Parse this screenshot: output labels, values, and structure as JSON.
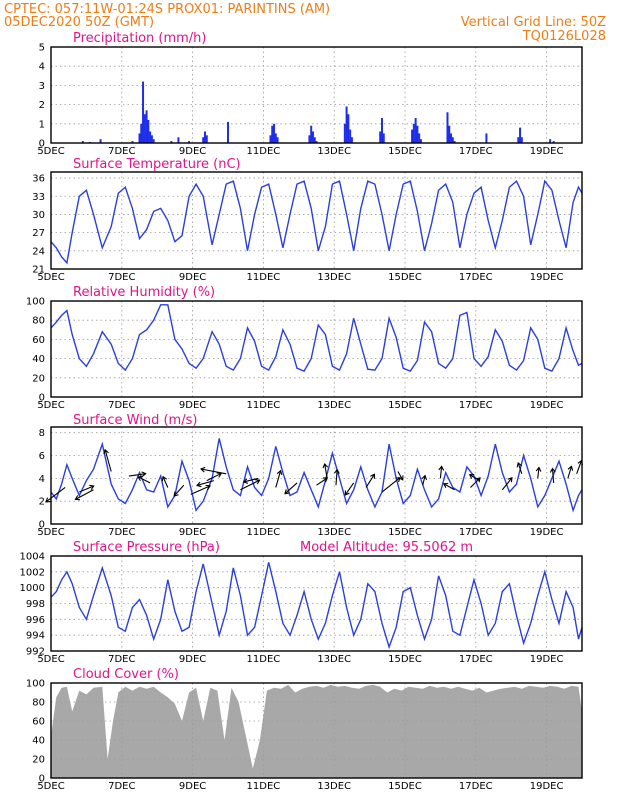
{
  "header": {
    "line1": "CPTEC:   057:11W-01:24S   PROX01: PARINTINS (AM)",
    "line2_left": "05DEC2020 50Z (GMT)",
    "line2_right": "Vertical Grid Line: 50Z",
    "line3_right": "TQ0126L028"
  },
  "x_axis": {
    "labels": [
      "5DEC",
      "7DEC",
      "9DEC",
      "11DEC",
      "13DEC",
      "15DEC",
      "17DEC",
      "19DEC"
    ],
    "start_day": 5,
    "end_day": 20
  },
  "colors": {
    "header": "#f07c14",
    "panel_title": "#e0148c",
    "series": "#2a3fe0",
    "bars": "#1f2ee8",
    "cloud": "#a8a8a8"
  },
  "chart_data": [
    {
      "type": "bar",
      "title": "Precipitation (mm/h)",
      "ylim": [
        0,
        5
      ],
      "yticks": [
        0,
        1,
        2,
        3,
        4,
        5
      ],
      "x": [
        5.9,
        6.1,
        6.4,
        7.3,
        7.5,
        7.55,
        7.6,
        7.65,
        7.7,
        7.75,
        7.8,
        7.85,
        7.9,
        8.4,
        8.6,
        8.9,
        9.3,
        9.35,
        9.4,
        10.0,
        11.2,
        11.25,
        11.3,
        11.35,
        11.4,
        12.3,
        12.35,
        12.4,
        12.45,
        12.5,
        13.3,
        13.35,
        13.4,
        13.45,
        13.5,
        14.3,
        14.35,
        14.4,
        15.2,
        15.25,
        15.3,
        15.35,
        15.4,
        15.45,
        16.2,
        16.25,
        16.3,
        16.35,
        16.4,
        17.3,
        18.2,
        18.25,
        18.3,
        19.1,
        19.2
      ],
      "values": [
        0.1,
        0.05,
        0.2,
        0.1,
        0.5,
        1.0,
        3.2,
        1.5,
        1.7,
        1.2,
        0.6,
        0.4,
        0.2,
        0.1,
        0.3,
        0.1,
        0.3,
        0.6,
        0.4,
        1.1,
        0.4,
        0.9,
        1.0,
        0.5,
        0.3,
        0.4,
        0.9,
        0.6,
        0.3,
        0.1,
        1.0,
        1.9,
        1.5,
        0.7,
        0.3,
        0.6,
        1.3,
        0.5,
        0.7,
        1.0,
        1.3,
        0.9,
        0.5,
        0.2,
        1.6,
        0.9,
        0.5,
        0.3,
        0.1,
        0.5,
        0.3,
        0.8,
        0.3,
        0.2,
        0.1
      ]
    },
    {
      "type": "line",
      "title": "Surface Temperature (nC)",
      "ylim": [
        21,
        37
      ],
      "yticks": [
        21,
        24,
        27,
        30,
        33,
        36
      ],
      "x": [
        5.0,
        5.15,
        5.3,
        5.45,
        5.6,
        5.8,
        6.0,
        6.2,
        6.45,
        6.7,
        6.9,
        7.1,
        7.3,
        7.5,
        7.7,
        7.9,
        8.1,
        8.3,
        8.5,
        8.7,
        8.9,
        9.1,
        9.3,
        9.55,
        9.75,
        9.95,
        10.15,
        10.35,
        10.55,
        10.75,
        10.95,
        11.15,
        11.35,
        11.55,
        11.75,
        11.95,
        12.15,
        12.35,
        12.55,
        12.75,
        12.95,
        13.15,
        13.35,
        13.55,
        13.75,
        13.95,
        14.15,
        14.35,
        14.55,
        14.75,
        14.95,
        15.15,
        15.35,
        15.55,
        15.75,
        15.95,
        16.15,
        16.35,
        16.55,
        16.75,
        16.95,
        17.15,
        17.35,
        17.55,
        17.75,
        17.95,
        18.15,
        18.35,
        18.55,
        18.75,
        18.95,
        19.15,
        19.35,
        19.55,
        19.75,
        19.9,
        20.0
      ],
      "values": [
        25.5,
        24.5,
        23.0,
        22.0,
        27.0,
        33.0,
        34.0,
        30.0,
        24.5,
        28.0,
        33.5,
        34.5,
        31.0,
        26.0,
        27.5,
        30.5,
        31.0,
        29.0,
        25.5,
        26.5,
        33.0,
        35.0,
        33.0,
        25.0,
        30.0,
        35.0,
        35.5,
        31.0,
        24.0,
        30.0,
        34.5,
        35.0,
        30.0,
        24.5,
        30.0,
        35.0,
        35.5,
        31.0,
        24.0,
        28.0,
        35.0,
        35.5,
        30.0,
        24.0,
        31.0,
        35.5,
        35.0,
        30.0,
        24.0,
        30.0,
        35.0,
        35.5,
        30.5,
        24.0,
        28.5,
        34.0,
        35.0,
        32.0,
        24.5,
        30.0,
        33.5,
        34.5,
        29.0,
        24.5,
        29.0,
        34.5,
        35.5,
        33.0,
        25.0,
        30.0,
        35.5,
        34.0,
        29.0,
        24.5,
        32.0,
        34.5,
        33.5
      ]
    },
    {
      "type": "line",
      "title": "Relative Humidity (%)",
      "ylim": [
        0,
        100
      ],
      "yticks": [
        0,
        20,
        40,
        60,
        80,
        100
      ],
      "x": [
        5.0,
        5.15,
        5.3,
        5.45,
        5.6,
        5.8,
        6.0,
        6.2,
        6.45,
        6.7,
        6.9,
        7.1,
        7.3,
        7.5,
        7.7,
        7.9,
        8.1,
        8.3,
        8.5,
        8.7,
        8.9,
        9.1,
        9.3,
        9.55,
        9.75,
        9.95,
        10.15,
        10.35,
        10.55,
        10.75,
        10.95,
        11.15,
        11.35,
        11.55,
        11.75,
        11.95,
        12.15,
        12.35,
        12.55,
        12.75,
        12.95,
        13.15,
        13.35,
        13.55,
        13.75,
        13.95,
        14.15,
        14.35,
        14.55,
        14.75,
        14.95,
        15.15,
        15.35,
        15.55,
        15.75,
        15.95,
        16.15,
        16.35,
        16.55,
        16.75,
        16.95,
        17.15,
        17.35,
        17.55,
        17.75,
        17.95,
        18.15,
        18.35,
        18.55,
        18.75,
        18.95,
        19.15,
        19.35,
        19.55,
        19.75,
        19.9,
        20.0
      ],
      "values": [
        72,
        78,
        85,
        90,
        65,
        40,
        32,
        45,
        68,
        55,
        35,
        28,
        40,
        65,
        70,
        80,
        96,
        96,
        60,
        50,
        35,
        30,
        40,
        68,
        55,
        32,
        28,
        40,
        72,
        58,
        32,
        28,
        42,
        70,
        55,
        30,
        27,
        40,
        75,
        65,
        32,
        28,
        45,
        82,
        55,
        29,
        28,
        40,
        82,
        62,
        30,
        27,
        38,
        78,
        68,
        35,
        30,
        40,
        85,
        88,
        40,
        32,
        42,
        70,
        58,
        33,
        28,
        38,
        72,
        60,
        30,
        27,
        40,
        72,
        48,
        33,
        35
      ]
    },
    {
      "type": "line",
      "title": "Surface Wind (m/s)",
      "ylim": [
        0,
        8.5
      ],
      "yticks": [
        0,
        2,
        4,
        6,
        8
      ],
      "x": [
        5.0,
        5.15,
        5.3,
        5.45,
        5.6,
        5.8,
        6.0,
        6.2,
        6.45,
        6.7,
        6.9,
        7.1,
        7.3,
        7.5,
        7.7,
        7.9,
        8.1,
        8.3,
        8.5,
        8.7,
        8.9,
        9.1,
        9.3,
        9.55,
        9.75,
        9.95,
        10.15,
        10.35,
        10.55,
        10.75,
        10.95,
        11.15,
        11.35,
        11.55,
        11.75,
        11.95,
        12.15,
        12.35,
        12.55,
        12.75,
        12.95,
        13.15,
        13.35,
        13.55,
        13.75,
        13.95,
        14.15,
        14.35,
        14.55,
        14.75,
        14.95,
        15.15,
        15.35,
        15.55,
        15.75,
        15.95,
        16.15,
        16.35,
        16.55,
        16.75,
        16.95,
        17.15,
        17.35,
        17.55,
        17.75,
        17.95,
        18.15,
        18.35,
        18.55,
        18.75,
        18.95,
        19.15,
        19.35,
        19.55,
        19.75,
        19.9,
        20.0
      ],
      "values": [
        2.8,
        2.2,
        3.5,
        5.2,
        4.0,
        2.5,
        3.8,
        4.8,
        7.0,
        3.5,
        2.2,
        1.8,
        3.0,
        4.5,
        3.0,
        2.8,
        4.2,
        1.5,
        2.5,
        5.5,
        3.8,
        1.2,
        2.0,
        4.0,
        7.5,
        5.0,
        3.0,
        2.5,
        5.0,
        3.2,
        2.5,
        4.0,
        6.8,
        4.5,
        2.5,
        2.8,
        4.5,
        3.0,
        1.5,
        3.8,
        6.2,
        4.0,
        1.8,
        3.0,
        5.0,
        3.0,
        1.5,
        2.8,
        7.0,
        4.0,
        1.8,
        2.5,
        4.8,
        3.0,
        1.5,
        2.2,
        4.5,
        3.2,
        2.8,
        5.0,
        4.2,
        2.5,
        4.2,
        7.0,
        4.5,
        2.8,
        3.5,
        6.0,
        4.0,
        1.5,
        2.5,
        4.0,
        5.5,
        3.5,
        1.2,
        2.5,
        3.0
      ],
      "vectors": [
        {
          "x": 5.4,
          "speed": 3.2,
          "u": -1.6,
          "v": -1.2
        },
        {
          "x": 5.8,
          "speed": 2.8,
          "u": 1.2,
          "v": 0.5
        },
        {
          "x": 6.2,
          "speed": 3.0,
          "u": -1.5,
          "v": -0.8
        },
        {
          "x": 6.7,
          "speed": 4.6,
          "u": -0.5,
          "v": 1.8
        },
        {
          "x": 7.2,
          "speed": 4.2,
          "u": 1.4,
          "v": 0.2
        },
        {
          "x": 7.8,
          "speed": 3.6,
          "u": -1.0,
          "v": 0.5
        },
        {
          "x": 8.3,
          "speed": 3.2,
          "u": -0.4,
          "v": 0.9
        },
        {
          "x": 8.75,
          "speed": 3.4,
          "u": -0.8,
          "v": -0.9
        },
        {
          "x": 8.95,
          "speed": 2.6,
          "u": 1.6,
          "v": 0.7
        },
        {
          "x": 9.4,
          "speed": 3.8,
          "u": 1.2,
          "v": 0.6
        },
        {
          "x": 9.6,
          "speed": 3.8,
          "u": -1.4,
          "v": -0.4
        },
        {
          "x": 9.95,
          "speed": 4.4,
          "u": -2.1,
          "v": 0.4
        },
        {
          "x": 10.35,
          "speed": 3.0,
          "u": 1.6,
          "v": 0.8
        },
        {
          "x": 10.85,
          "speed": 4.0,
          "u": -1.2,
          "v": -0.3
        },
        {
          "x": 11.35,
          "speed": 3.2,
          "u": 0.4,
          "v": 1.4
        },
        {
          "x": 11.95,
          "speed": 3.6,
          "u": -1.0,
          "v": -0.9
        },
        {
          "x": 12.5,
          "speed": 3.4,
          "u": 0.9,
          "v": 0.6
        },
        {
          "x": 12.8,
          "speed": 4.0,
          "u": -0.2,
          "v": 1.2
        },
        {
          "x": 13.05,
          "speed": 3.4,
          "u": 0.1,
          "v": 1.3
        },
        {
          "x": 13.55,
          "speed": 3.6,
          "u": -0.7,
          "v": -1.0
        },
        {
          "x": 13.9,
          "speed": 3.2,
          "u": 0.7,
          "v": 1.1
        },
        {
          "x": 14.35,
          "speed": 2.8,
          "u": 1.5,
          "v": 1.2
        },
        {
          "x": 14.8,
          "speed": 4.6,
          "u": 0.4,
          "v": -0.7
        },
        {
          "x": 15.5,
          "speed": 3.4,
          "u": 0.2,
          "v": 0.8
        },
        {
          "x": 16.0,
          "speed": 4.0,
          "u": 0.1,
          "v": 1.0
        },
        {
          "x": 16.4,
          "speed": 3.0,
          "u": -0.9,
          "v": 0.5
        },
        {
          "x": 16.85,
          "speed": 3.2,
          "u": 0.8,
          "v": 0.8
        },
        {
          "x": 17.1,
          "speed": 3.8,
          "u": -0.8,
          "v": 0.5
        },
        {
          "x": 17.75,
          "speed": 3.0,
          "u": 0.8,
          "v": 1.0
        },
        {
          "x": 18.3,
          "speed": 4.4,
          "u": -0.3,
          "v": 0.9
        },
        {
          "x": 18.75,
          "speed": 4.0,
          "u": 0.1,
          "v": 0.9
        },
        {
          "x": 19.2,
          "speed": 3.6,
          "u": -0.1,
          "v": 1.2
        },
        {
          "x": 19.6,
          "speed": 4.0,
          "u": 0.3,
          "v": 1.0
        },
        {
          "x": 19.85,
          "speed": 4.4,
          "u": 0.4,
          "v": 1.1
        }
      ]
    },
    {
      "type": "line",
      "title": "Surface Pressure (hPa)",
      "annotation": "Model Altitude: 95.5062 m",
      "ylim": [
        992,
        1004
      ],
      "yticks": [
        992,
        994,
        996,
        998,
        1000,
        1002,
        1004
      ],
      "x": [
        5.0,
        5.15,
        5.3,
        5.45,
        5.6,
        5.8,
        6.0,
        6.2,
        6.45,
        6.7,
        6.9,
        7.1,
        7.3,
        7.5,
        7.7,
        7.9,
        8.1,
        8.3,
        8.5,
        8.7,
        8.9,
        9.1,
        9.3,
        9.55,
        9.75,
        9.95,
        10.15,
        10.35,
        10.55,
        10.75,
        10.95,
        11.15,
        11.35,
        11.55,
        11.75,
        11.95,
        12.15,
        12.35,
        12.55,
        12.75,
        12.95,
        13.15,
        13.35,
        13.55,
        13.75,
        13.95,
        14.15,
        14.35,
        14.55,
        14.75,
        14.95,
        15.15,
        15.35,
        15.55,
        15.75,
        15.95,
        16.15,
        16.35,
        16.55,
        16.75,
        16.95,
        17.15,
        17.35,
        17.55,
        17.75,
        17.95,
        18.15,
        18.35,
        18.55,
        18.75,
        18.95,
        19.15,
        19.35,
        19.55,
        19.75,
        19.9,
        20.0
      ],
      "values": [
        998.8,
        999.5,
        1001.0,
        1002.0,
        1000.5,
        997.5,
        996.0,
        999.0,
        1002.5,
        999.0,
        995.0,
        994.5,
        997.5,
        998.5,
        996.5,
        993.5,
        996.0,
        1001.0,
        997.0,
        994.5,
        995.0,
        999.5,
        1003.0,
        998.0,
        994.0,
        997.0,
        1002.5,
        999.0,
        994.0,
        995.0,
        999.0,
        1003.2,
        999.5,
        995.5,
        994.0,
        996.5,
        999.5,
        996.0,
        993.5,
        995.5,
        999.0,
        1002.0,
        997.5,
        994.0,
        996.0,
        1000.5,
        999.5,
        995.5,
        992.5,
        995.0,
        999.5,
        1000.0,
        996.5,
        993.5,
        996.0,
        1001.5,
        999.0,
        994.5,
        994.0,
        997.5,
        1001.0,
        998.0,
        994.0,
        995.5,
        999.5,
        1000.5,
        996.5,
        993.0,
        995.5,
        999.0,
        1002.0,
        998.5,
        995.5,
        999.5,
        997.5,
        993.5,
        995.0
      ]
    },
    {
      "type": "area",
      "title": "Cloud Cover (%)",
      "ylim": [
        0,
        100
      ],
      "yticks": [
        0,
        20,
        40,
        60,
        80,
        100
      ],
      "x": [
        5.0,
        5.15,
        5.3,
        5.45,
        5.6,
        5.8,
        6.0,
        6.2,
        6.45,
        6.6,
        6.75,
        6.9,
        7.1,
        7.3,
        7.5,
        7.7,
        7.9,
        8.1,
        8.3,
        8.5,
        8.7,
        8.9,
        9.1,
        9.3,
        9.5,
        9.7,
        9.9,
        10.1,
        10.3,
        10.5,
        10.7,
        10.9,
        11.1,
        11.3,
        11.5,
        11.7,
        11.9,
        12.1,
        12.3,
        12.5,
        12.7,
        12.9,
        13.1,
        13.3,
        13.5,
        13.7,
        13.9,
        14.1,
        14.3,
        14.5,
        14.7,
        14.9,
        15.1,
        15.3,
        15.5,
        15.7,
        15.9,
        16.1,
        16.3,
        16.5,
        16.7,
        16.9,
        17.1,
        17.3,
        17.5,
        17.7,
        17.9,
        18.1,
        18.3,
        18.5,
        18.7,
        18.9,
        19.1,
        19.3,
        19.5,
        19.7,
        19.9,
        20.0
      ],
      "values": [
        45,
        85,
        95,
        96,
        70,
        92,
        88,
        95,
        96,
        20,
        60,
        90,
        96,
        92,
        96,
        94,
        96,
        90,
        85,
        78,
        60,
        90,
        95,
        60,
        95,
        92,
        40,
        95,
        80,
        45,
        10,
        40,
        92,
        95,
        94,
        98,
        90,
        94,
        96,
        97,
        95,
        98,
        96,
        97,
        95,
        94,
        97,
        98,
        96,
        90,
        94,
        92,
        96,
        95,
        94,
        97,
        95,
        96,
        94,
        96,
        94,
        92,
        95,
        90,
        92,
        94,
        95,
        96,
        94,
        97,
        96,
        95,
        97,
        96,
        94,
        97,
        96,
        70
      ]
    }
  ]
}
